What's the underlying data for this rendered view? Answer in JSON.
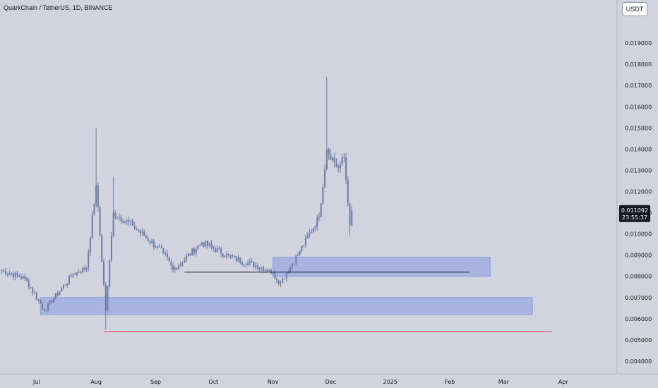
{
  "header": {
    "title": "QuarkChain / TetherUS, 1D, BINANCE"
  },
  "axis": {
    "currency": "USDT"
  },
  "current_price": {
    "value": "0.011092",
    "countdown": "23:55:37",
    "color": "#131722"
  },
  "colors": {
    "background": "#d1d4dc",
    "candle": "#6a7aa8",
    "zone": "#8b9fe0",
    "support_line": "#f23645",
    "level_line": "#131722"
  },
  "chart_data": {
    "type": "candlestick",
    "y_ticks": [
      "0.004000",
      "0.005000",
      "0.006000",
      "0.007000",
      "0.008000",
      "0.009000",
      "0.010000",
      "0.011000",
      "0.012000",
      "0.013000",
      "0.014000",
      "0.015000",
      "0.016000",
      "0.017000",
      "0.018000",
      "0.019000"
    ],
    "ylim": [
      0.0034,
      0.0203
    ],
    "x_ticks": [
      {
        "label": "Jul",
        "date": "2024-07-01"
      },
      {
        "label": "Aug",
        "date": "2024-08-01"
      },
      {
        "label": "Sep",
        "date": "2024-09-01"
      },
      {
        "label": "Oct",
        "date": "2024-10-01"
      },
      {
        "label": "Nov",
        "date": "2024-11-01"
      },
      {
        "label": "Dec",
        "date": "2024-12-01"
      },
      {
        "label": "2025",
        "date": "2025-01-01"
      },
      {
        "label": "Feb",
        "date": "2025-02-01"
      },
      {
        "label": "Mar",
        "date": "2025-03-01"
      },
      {
        "label": "Apr",
        "date": "2025-04-01"
      }
    ],
    "xlim": [
      "2024-06-12",
      "2025-04-29"
    ],
    "key_points": [
      {
        "date": "2024-06-12",
        "close": 0.0083
      },
      {
        "date": "2024-06-25",
        "close": 0.0079
      },
      {
        "date": "2024-07-05",
        "close": 0.0064
      },
      {
        "date": "2024-07-20",
        "close": 0.0081
      },
      {
        "date": "2024-07-27",
        "close": 0.0084
      },
      {
        "date": "2024-08-01",
        "close": 0.0123,
        "high": 0.015
      },
      {
        "date": "2024-08-06",
        "close": 0.0064,
        "low": 0.0055
      },
      {
        "date": "2024-08-10",
        "close": 0.011,
        "high": 0.0127
      },
      {
        "date": "2024-08-20",
        "close": 0.0104
      },
      {
        "date": "2024-09-05",
        "close": 0.0091
      },
      {
        "date": "2024-09-10",
        "close": 0.0083
      },
      {
        "date": "2024-09-25",
        "close": 0.0096
      },
      {
        "date": "2024-10-10",
        "close": 0.0089
      },
      {
        "date": "2024-10-30",
        "close": 0.0083
      },
      {
        "date": "2024-11-05",
        "close": 0.0077,
        "low": 0.0075
      },
      {
        "date": "2024-11-15",
        "close": 0.0092
      },
      {
        "date": "2024-11-25",
        "close": 0.0108
      },
      {
        "date": "2024-11-29",
        "close": 0.014,
        "high": 0.0174
      },
      {
        "date": "2024-12-05",
        "close": 0.0131
      },
      {
        "date": "2024-12-08",
        "close": 0.0136,
        "high": 0.0138
      },
      {
        "date": "2024-12-11",
        "close": 0.0104,
        "low": 0.0099
      },
      {
        "date": "2024-12-12",
        "close": 0.011092
      }
    ],
    "zones": [
      {
        "from": "2024-11-01",
        "to": "2025-02-22",
        "low": 0.008,
        "high": 0.0089
      },
      {
        "from": "2024-07-03",
        "to": "2025-03-16",
        "low": 0.0062,
        "high": 0.007
      }
    ],
    "levels": [
      {
        "from": "2024-09-16",
        "to": "2025-02-11",
        "price": 0.0082
      },
      {
        "from": "2024-08-05",
        "to": "2025-03-26",
        "price": 0.0054
      }
    ]
  }
}
